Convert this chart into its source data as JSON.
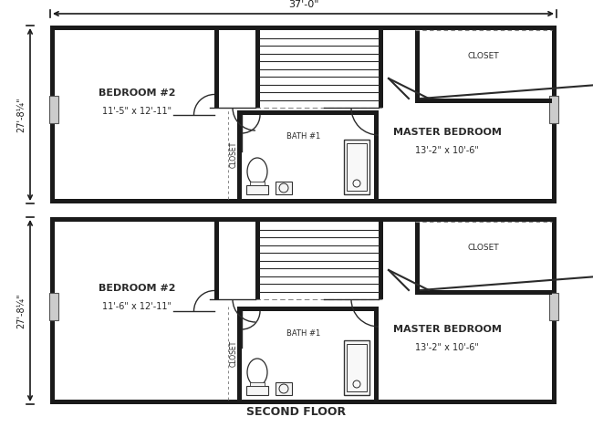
{
  "title": "SECOND FLOOR",
  "dim_width": "37'-0\"",
  "dim_height": "27'-8¼\"",
  "bg_color": "#ffffff",
  "wall_color": "#1a1a1a",
  "line_color": "#2a2a2a",
  "dashed_color": "#888888",
  "room1_label": "BEDROOM #2",
  "room1_dim": "11'-5\" x 12'-11\"",
  "room2_label": "MASTER BEDROOM",
  "room2_dim": "13'-2\" x 10'-6\"",
  "room3_label": "BEDROOM #2",
  "room3_dim": "11'-6\" x 12'-11\"",
  "room4_label": "MASTER BEDROOM",
  "room4_dim": "13'-2\" x 10'-6\"",
  "bath_label": "BATH #1",
  "closet_label": "CLOSET"
}
